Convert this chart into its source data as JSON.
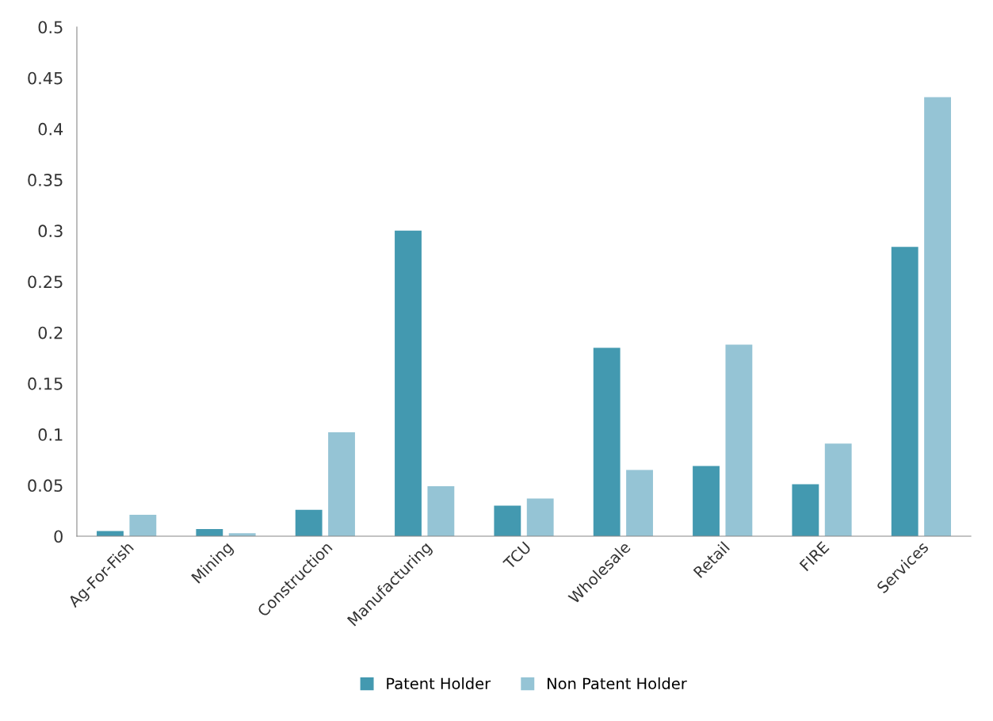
{
  "chart_data": {
    "type": "bar",
    "categories": [
      "Ag-For-Fish",
      "Mining",
      "Construction",
      "Manufacturing",
      "TCU",
      "Wholesale",
      "Retail",
      "FIRE",
      "Services"
    ],
    "series": [
      {
        "name": "Patent Holder",
        "color": "#4399b0",
        "values": [
          0.005,
          0.007,
          0.026,
          0.3,
          0.03,
          0.185,
          0.069,
          0.051,
          0.284
        ]
      },
      {
        "name": "Non Patent Holder",
        "color": "#95c4d5",
        "values": [
          0.021,
          0.003,
          0.102,
          0.049,
          0.037,
          0.065,
          0.188,
          0.091,
          0.431
        ]
      }
    ],
    "ylim": [
      0,
      0.5
    ],
    "yticks": [
      0,
      0.05,
      0.1,
      0.15,
      0.2,
      0.25,
      0.3,
      0.35,
      0.4,
      0.45,
      0.5
    ],
    "grid": false,
    "legend": "bottom"
  }
}
